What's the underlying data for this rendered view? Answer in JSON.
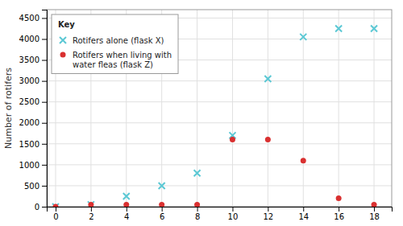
{
  "chart_data": {
    "type": "scatter",
    "ylabel": "Number of rotifers",
    "legend_title": "Key",
    "legend": "upper left",
    "grid": true,
    "x": [
      0,
      2,
      4,
      6,
      8,
      10,
      12,
      14,
      16,
      18
    ],
    "series": [
      {
        "name": "Rotifers alone (flask X)",
        "color": "#5bc8d4",
        "marker": "x",
        "values": [
          0,
          50,
          250,
          500,
          800,
          1700,
          3050,
          4050,
          4250,
          4250
        ]
      },
      {
        "name": "Rotifers when living with\nwater fleas (flask Z)",
        "color": "#d93030",
        "marker": "o",
        "values": [
          0,
          50,
          50,
          50,
          50,
          1600,
          1600,
          1100,
          200,
          50
        ]
      }
    ],
    "xlim": [
      -0.5,
      19
    ],
    "ylim": [
      0,
      4700
    ],
    "xticks": [
      0,
      2,
      4,
      6,
      8,
      10,
      12,
      14,
      16,
      18
    ],
    "yticks": [
      0,
      500,
      1000,
      1500,
      2000,
      2500,
      3000,
      3500,
      4000,
      4500
    ]
  }
}
